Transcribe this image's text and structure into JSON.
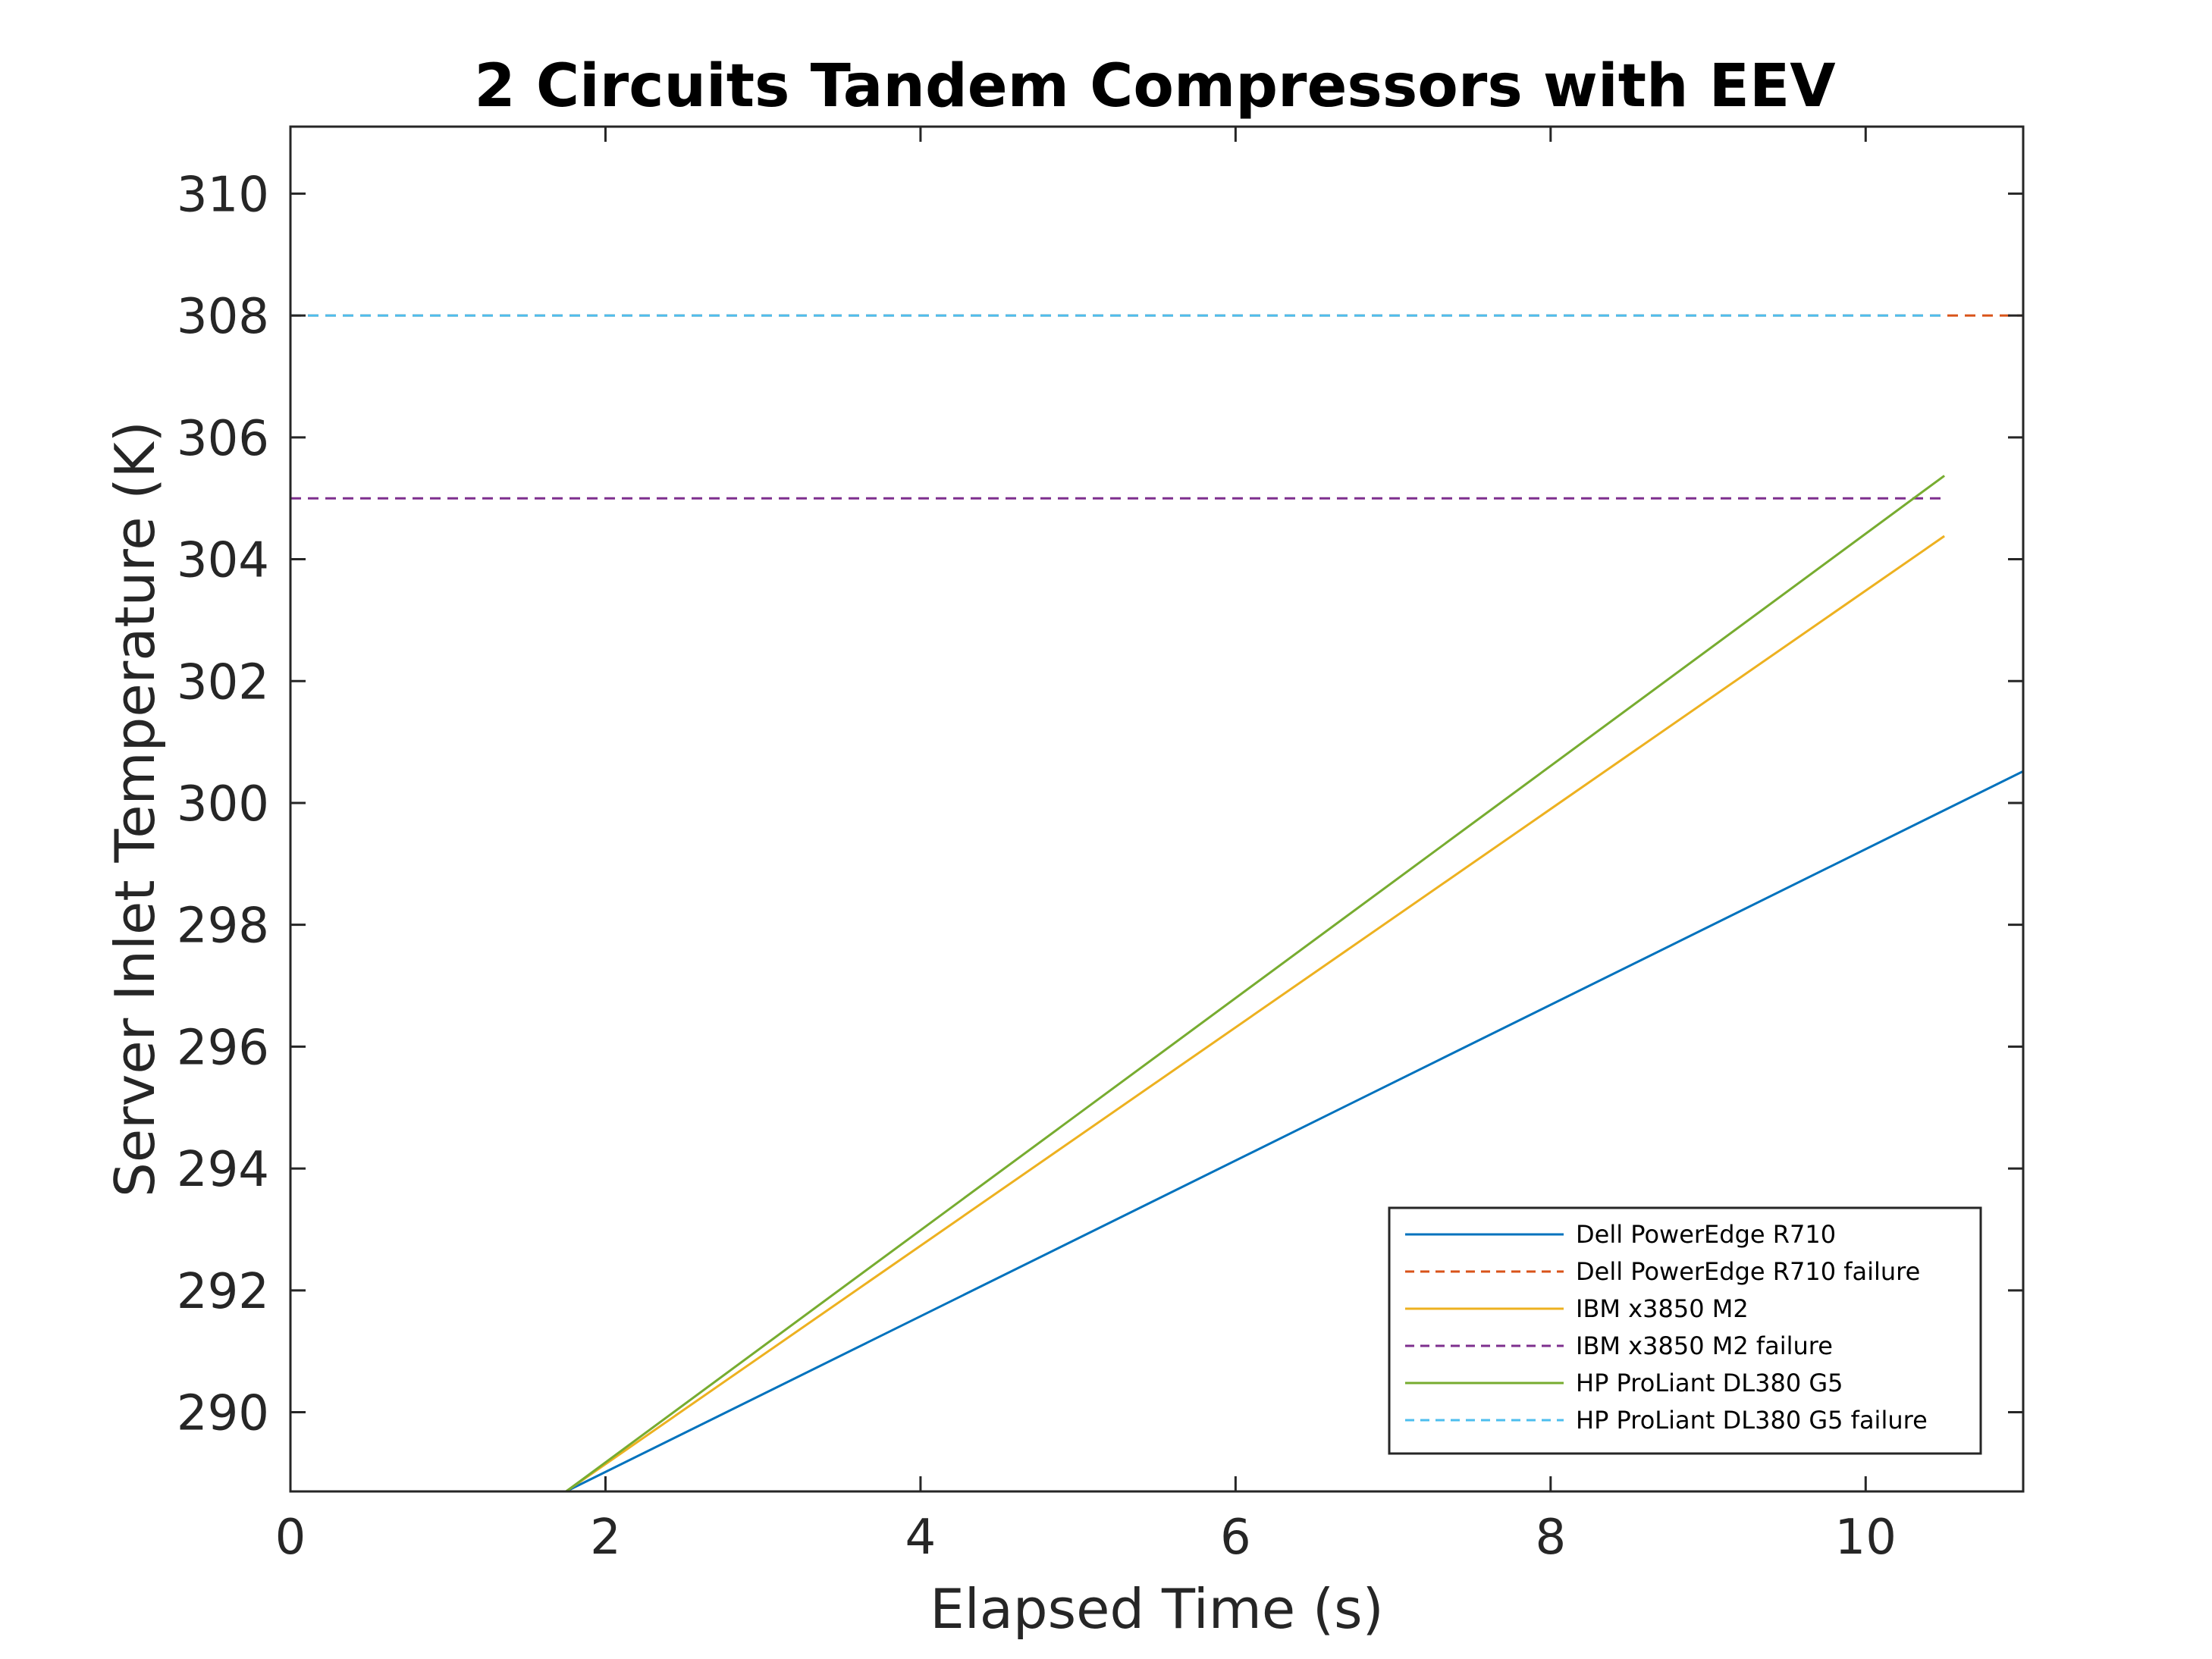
{
  "chart_data": {
    "type": "line",
    "title": "2 Circuits Tandem Compressors with EEV",
    "xlabel": "Elapsed Time (s)",
    "ylabel": "Server Inlet Temperature (K)",
    "xlim": [
      0,
      11
    ],
    "ylim": [
      288.7,
      311.1
    ],
    "xticks": [
      0,
      2,
      4,
      6,
      8,
      10
    ],
    "yticks": [
      290,
      292,
      294,
      296,
      298,
      300,
      302,
      304,
      306,
      308,
      310
    ],
    "grid": false,
    "legend_position": "bottom-right",
    "series": [
      {
        "name": "Dell PowerEdge R710",
        "color": "#0072BD",
        "dash": "solid",
        "x": [
          0,
          1.75,
          11
        ],
        "y": [
          288.7,
          288.7,
          300.52
        ]
      },
      {
        "name": "Dell PowerEdge R710 failure",
        "color": "#D95319",
        "dash": "dashed",
        "x": [
          0,
          11
        ],
        "y": [
          308,
          308
        ]
      },
      {
        "name": "IBM x3850 M2",
        "color": "#EDB120",
        "dash": "solid",
        "x": [
          0,
          1.75,
          10.5
        ],
        "y": [
          288.7,
          288.7,
          304.38
        ]
      },
      {
        "name": "IBM x3850 M2 failure",
        "color": "#7E2F8E",
        "dash": "dashed",
        "x": [
          0,
          10.5
        ],
        "y": [
          305,
          305
        ]
      },
      {
        "name": "HP ProLiant DL380 G5",
        "color": "#77AC30",
        "dash": "solid",
        "x": [
          0,
          1.75,
          10.5
        ],
        "y": [
          288.7,
          288.7,
          305.37
        ]
      },
      {
        "name": "HP ProLiant DL380 G5 failure",
        "color": "#4DBEEE",
        "dash": "dashed",
        "x": [
          0,
          10.5
        ],
        "y": [
          308,
          308
        ]
      }
    ]
  }
}
